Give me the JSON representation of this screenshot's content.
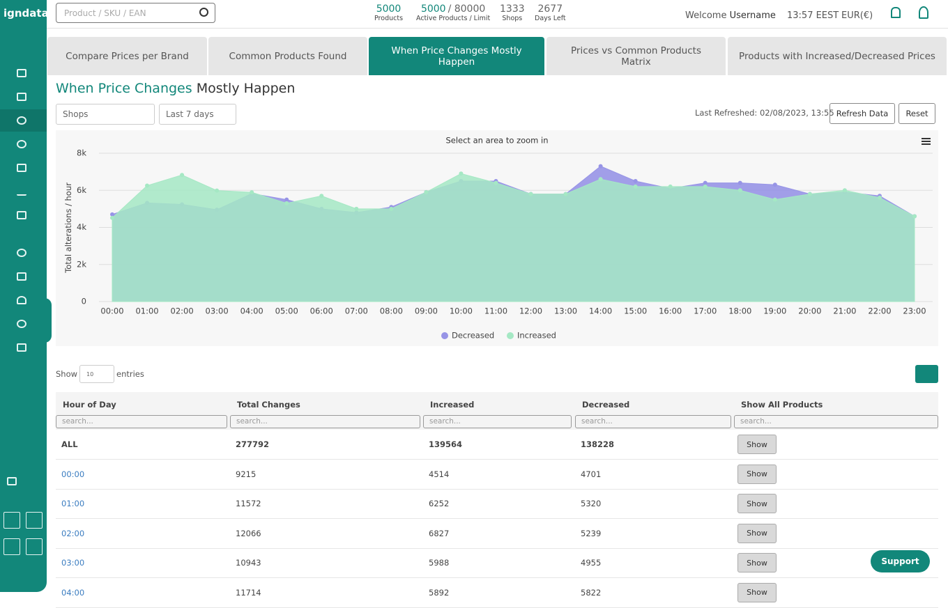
{
  "brand": "igndata",
  "search_placeholder": "Product / SKU / EAN",
  "stats": [
    {
      "value": "5000",
      "label": "Products"
    },
    {
      "value": "5000",
      "limit": "/ 80000",
      "label": "Active Products / Limit"
    },
    {
      "value": "1333",
      "label": "Shops"
    },
    {
      "value": "2677",
      "label": "Days Left"
    }
  ],
  "user": {
    "welcome": "Welcome",
    "name": "Username",
    "time": "13:57 EEST",
    "currency": "EUR(€)"
  },
  "tabs": [
    "Compare Prices per Brand",
    "Common Products Found",
    "When Price Changes Mostly Happen",
    "Prices vs Common Products Matrix",
    "Products with Increased/Decreased Prices"
  ],
  "page_title": {
    "accent": "When Price Changes",
    "rest": "Mostly Happen"
  },
  "filters": [
    "Shops",
    "Last 7 days"
  ],
  "last_refreshed": "Last Refreshed: 02/08/2023, 13:55",
  "buttons": [
    "Refresh Data",
    "Reset"
  ],
  "chart_data": {
    "type": "area",
    "subtitle": "Select an area to zoom in",
    "y_label": "Total alterations / hour",
    "x": [
      "00:00",
      "01:00",
      "02:00",
      "03:00",
      "04:00",
      "05:00",
      "06:00",
      "07:00",
      "08:00",
      "09:00",
      "10:00",
      "11:00",
      "12:00",
      "13:00",
      "14:00",
      "15:00",
      "16:00",
      "17:00",
      "18:00",
      "19:00",
      "20:00",
      "21:00",
      "22:00",
      "23:00"
    ],
    "series": [
      {
        "name": "Decreased",
        "color": "#9794e6",
        "values": [
          4701,
          5320,
          5239,
          4955,
          5822,
          5500,
          5000,
          4800,
          5100,
          5900,
          6500,
          6500,
          5800,
          5800,
          7300,
          6500,
          6100,
          6400,
          6400,
          6300,
          5800,
          5900,
          5700,
          4600
        ]
      },
      {
        "name": "Increased",
        "color": "#a5e8c4",
        "values": [
          4514,
          6252,
          6827,
          5988,
          5892,
          5300,
          5700,
          5000,
          5000,
          5900,
          6900,
          6400,
          5800,
          5800,
          6600,
          6200,
          6200,
          6200,
          6000,
          5500,
          5800,
          6000,
          5600,
          4600
        ]
      }
    ],
    "ylim": [
      0,
      8000
    ],
    "yticks": [
      0,
      {
        "value": 2000,
        "label": "2k"
      },
      {
        "value": 4000,
        "label": "4k"
      },
      {
        "value": 6000,
        "label": "6k"
      },
      {
        "value": 8000,
        "label": "8k"
      }
    ],
    "grid": true,
    "legend": "bottom"
  },
  "table": {
    "show": "Show",
    "page_size": "10",
    "entries": "entries",
    "columns": [
      "Hour of Day",
      "Total Changes",
      "Increased",
      "Decreased",
      "Show All Products"
    ],
    "search_placeholder": "search...",
    "rows": [
      [
        "ALL",
        "277792",
        "139564",
        "138228",
        "Show"
      ],
      [
        "00:00",
        "9215",
        "4514",
        "4701",
        "Show"
      ],
      [
        "01:00",
        "11572",
        "6252",
        "5320",
        "Show"
      ],
      [
        "02:00",
        "12066",
        "6827",
        "5239",
        "Show"
      ],
      [
        "03:00",
        "10943",
        "5988",
        "4955",
        "Show"
      ],
      [
        "04:00",
        "11714",
        "5892",
        "5822",
        "Show"
      ]
    ]
  },
  "support": "Support"
}
